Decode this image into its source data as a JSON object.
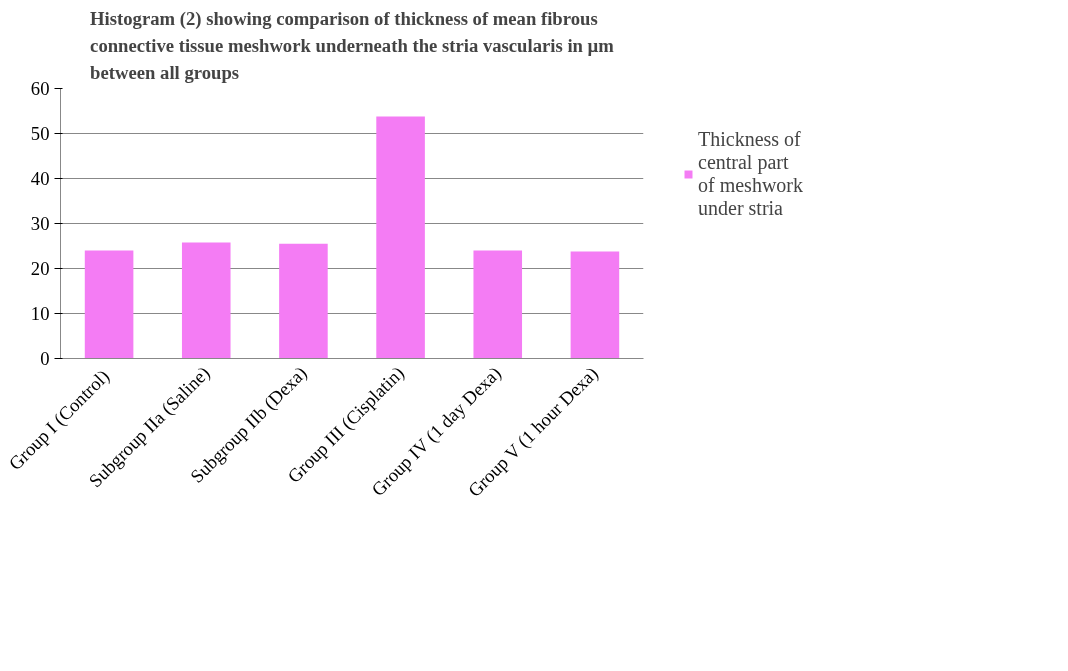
{
  "chart_data": {
    "type": "bar",
    "title": "Histogram (2) showing comparison of thickness of mean fibrous connective tissue meshwork underneath the stria vascularis in µm between all groups",
    "categories": [
      "Group I  (Control)",
      "Subgroup IIa (Saline)",
      "Subgroup IIb (Dexa)",
      "Group III (Cisplatin)",
      "Group IV (1 day Dexa)",
      "Group V (1 hour Dexa)"
    ],
    "series": [
      {
        "name": "Thickness of central part of meshwork under stria",
        "color": "#f47cf4",
        "values": [
          24,
          25.8,
          25.5,
          53.8,
          24,
          23.8
        ]
      }
    ],
    "ylim": [
      0,
      60
    ],
    "yticks": [
      0,
      10,
      20,
      30,
      40,
      50,
      60
    ],
    "grid": "y",
    "legend": "right"
  }
}
